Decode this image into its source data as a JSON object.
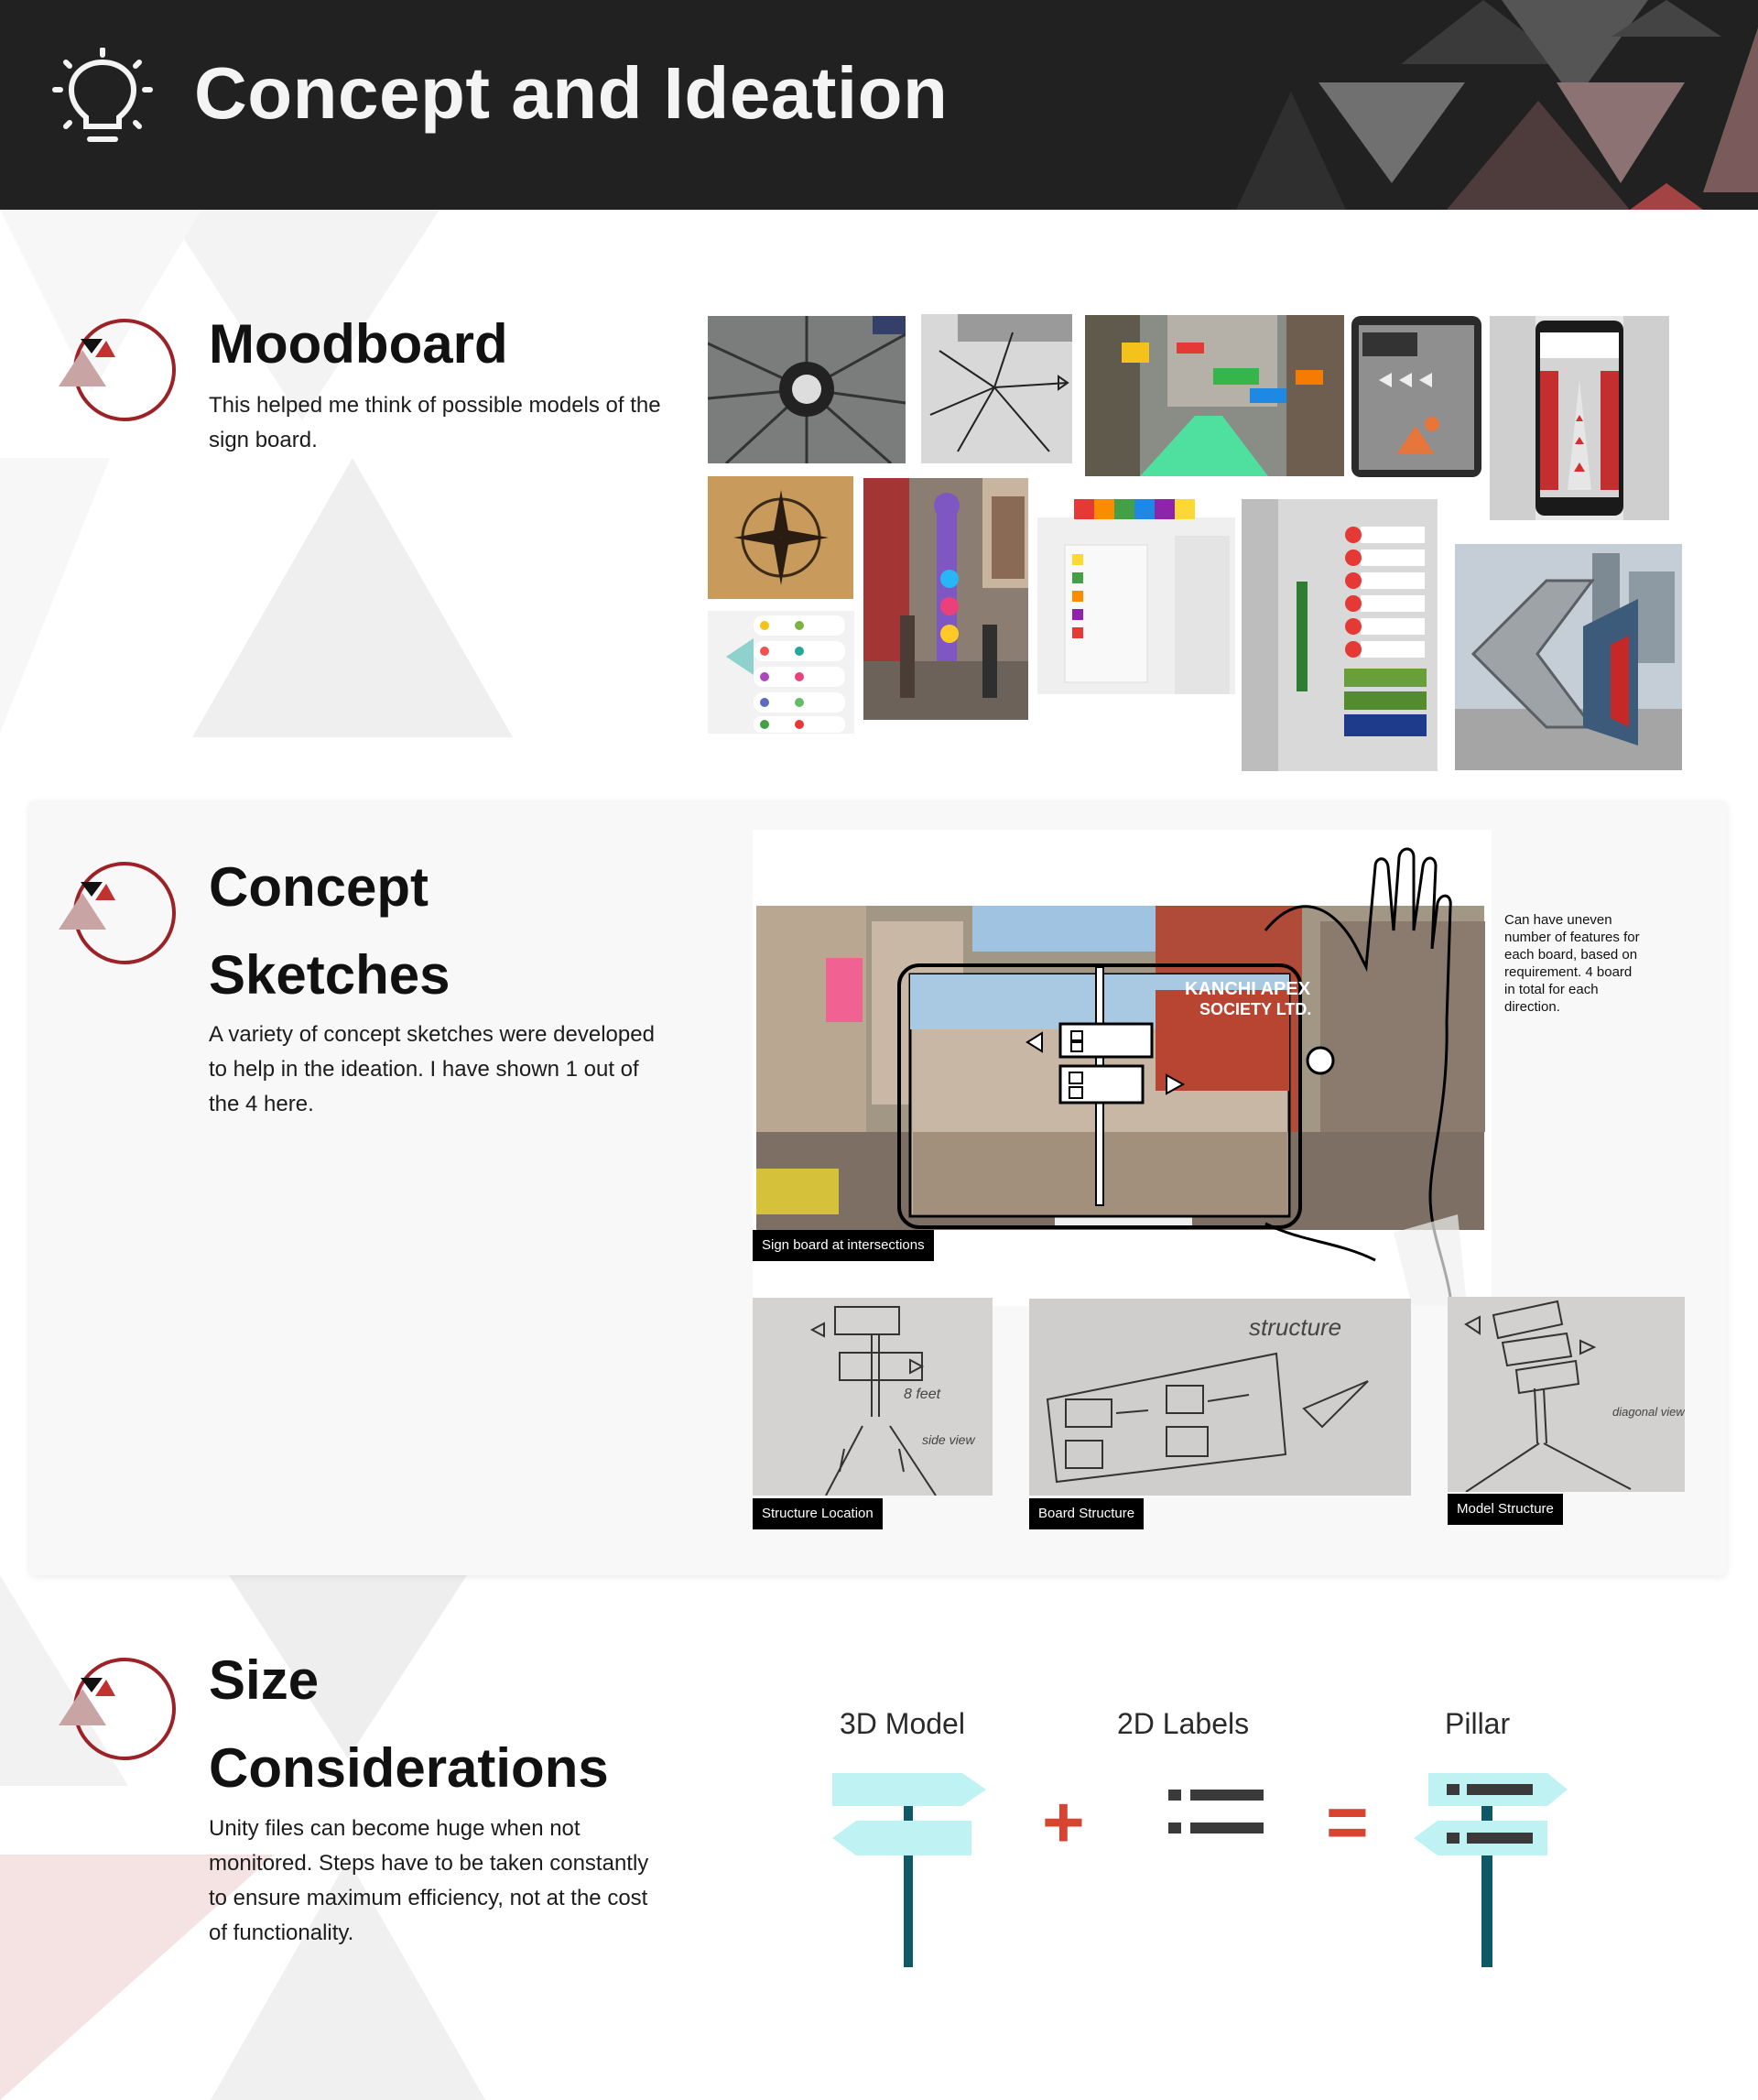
{
  "header": {
    "title": "Concept and Ideation",
    "icon": "lightbulb-icon"
  },
  "moodboard": {
    "title": "Moodboard",
    "description": "This helped me think of possible models of the sign board."
  },
  "concept": {
    "title_line1": "Concept",
    "title_line2": "Sketches",
    "description": "A variety of concept sketches were developed to help in the ideation. I have shown 1 out of the 4 here.",
    "note": "Can have uneven number of features for each board, based on requirement. 4 board in total for each direction.",
    "captions": {
      "main": "Sign board at intersections",
      "structure_location": "Structure Location",
      "board_structure": "Board Structure",
      "model_structure": "Model Structure"
    },
    "photo_text": {
      "society_line1": "KANCHI APEX",
      "society_line2": "SOCIETY LTD."
    },
    "sketch_text": {
      "structure": "structure",
      "diagonal": "diagonal view",
      "side_view": "side view",
      "feet": "8 feet"
    }
  },
  "size": {
    "title_line1": "Size",
    "title_line2": "Considerations",
    "description": "Unity files can become huge when not monitored. Steps have to be taken constantly to ensure maximum efficiency, not at the cost of functionality.",
    "diagram": {
      "label_3d": "3D Model",
      "label_2d": "2D Labels",
      "label_pillar": "Pillar",
      "plus": "+",
      "equals": "="
    }
  },
  "colors": {
    "header_bg": "#212121",
    "accent_red": "#9b2226",
    "sign_cyan": "#bff3f3",
    "pole_teal": "#0f5865",
    "operator_red": "#d84430"
  }
}
